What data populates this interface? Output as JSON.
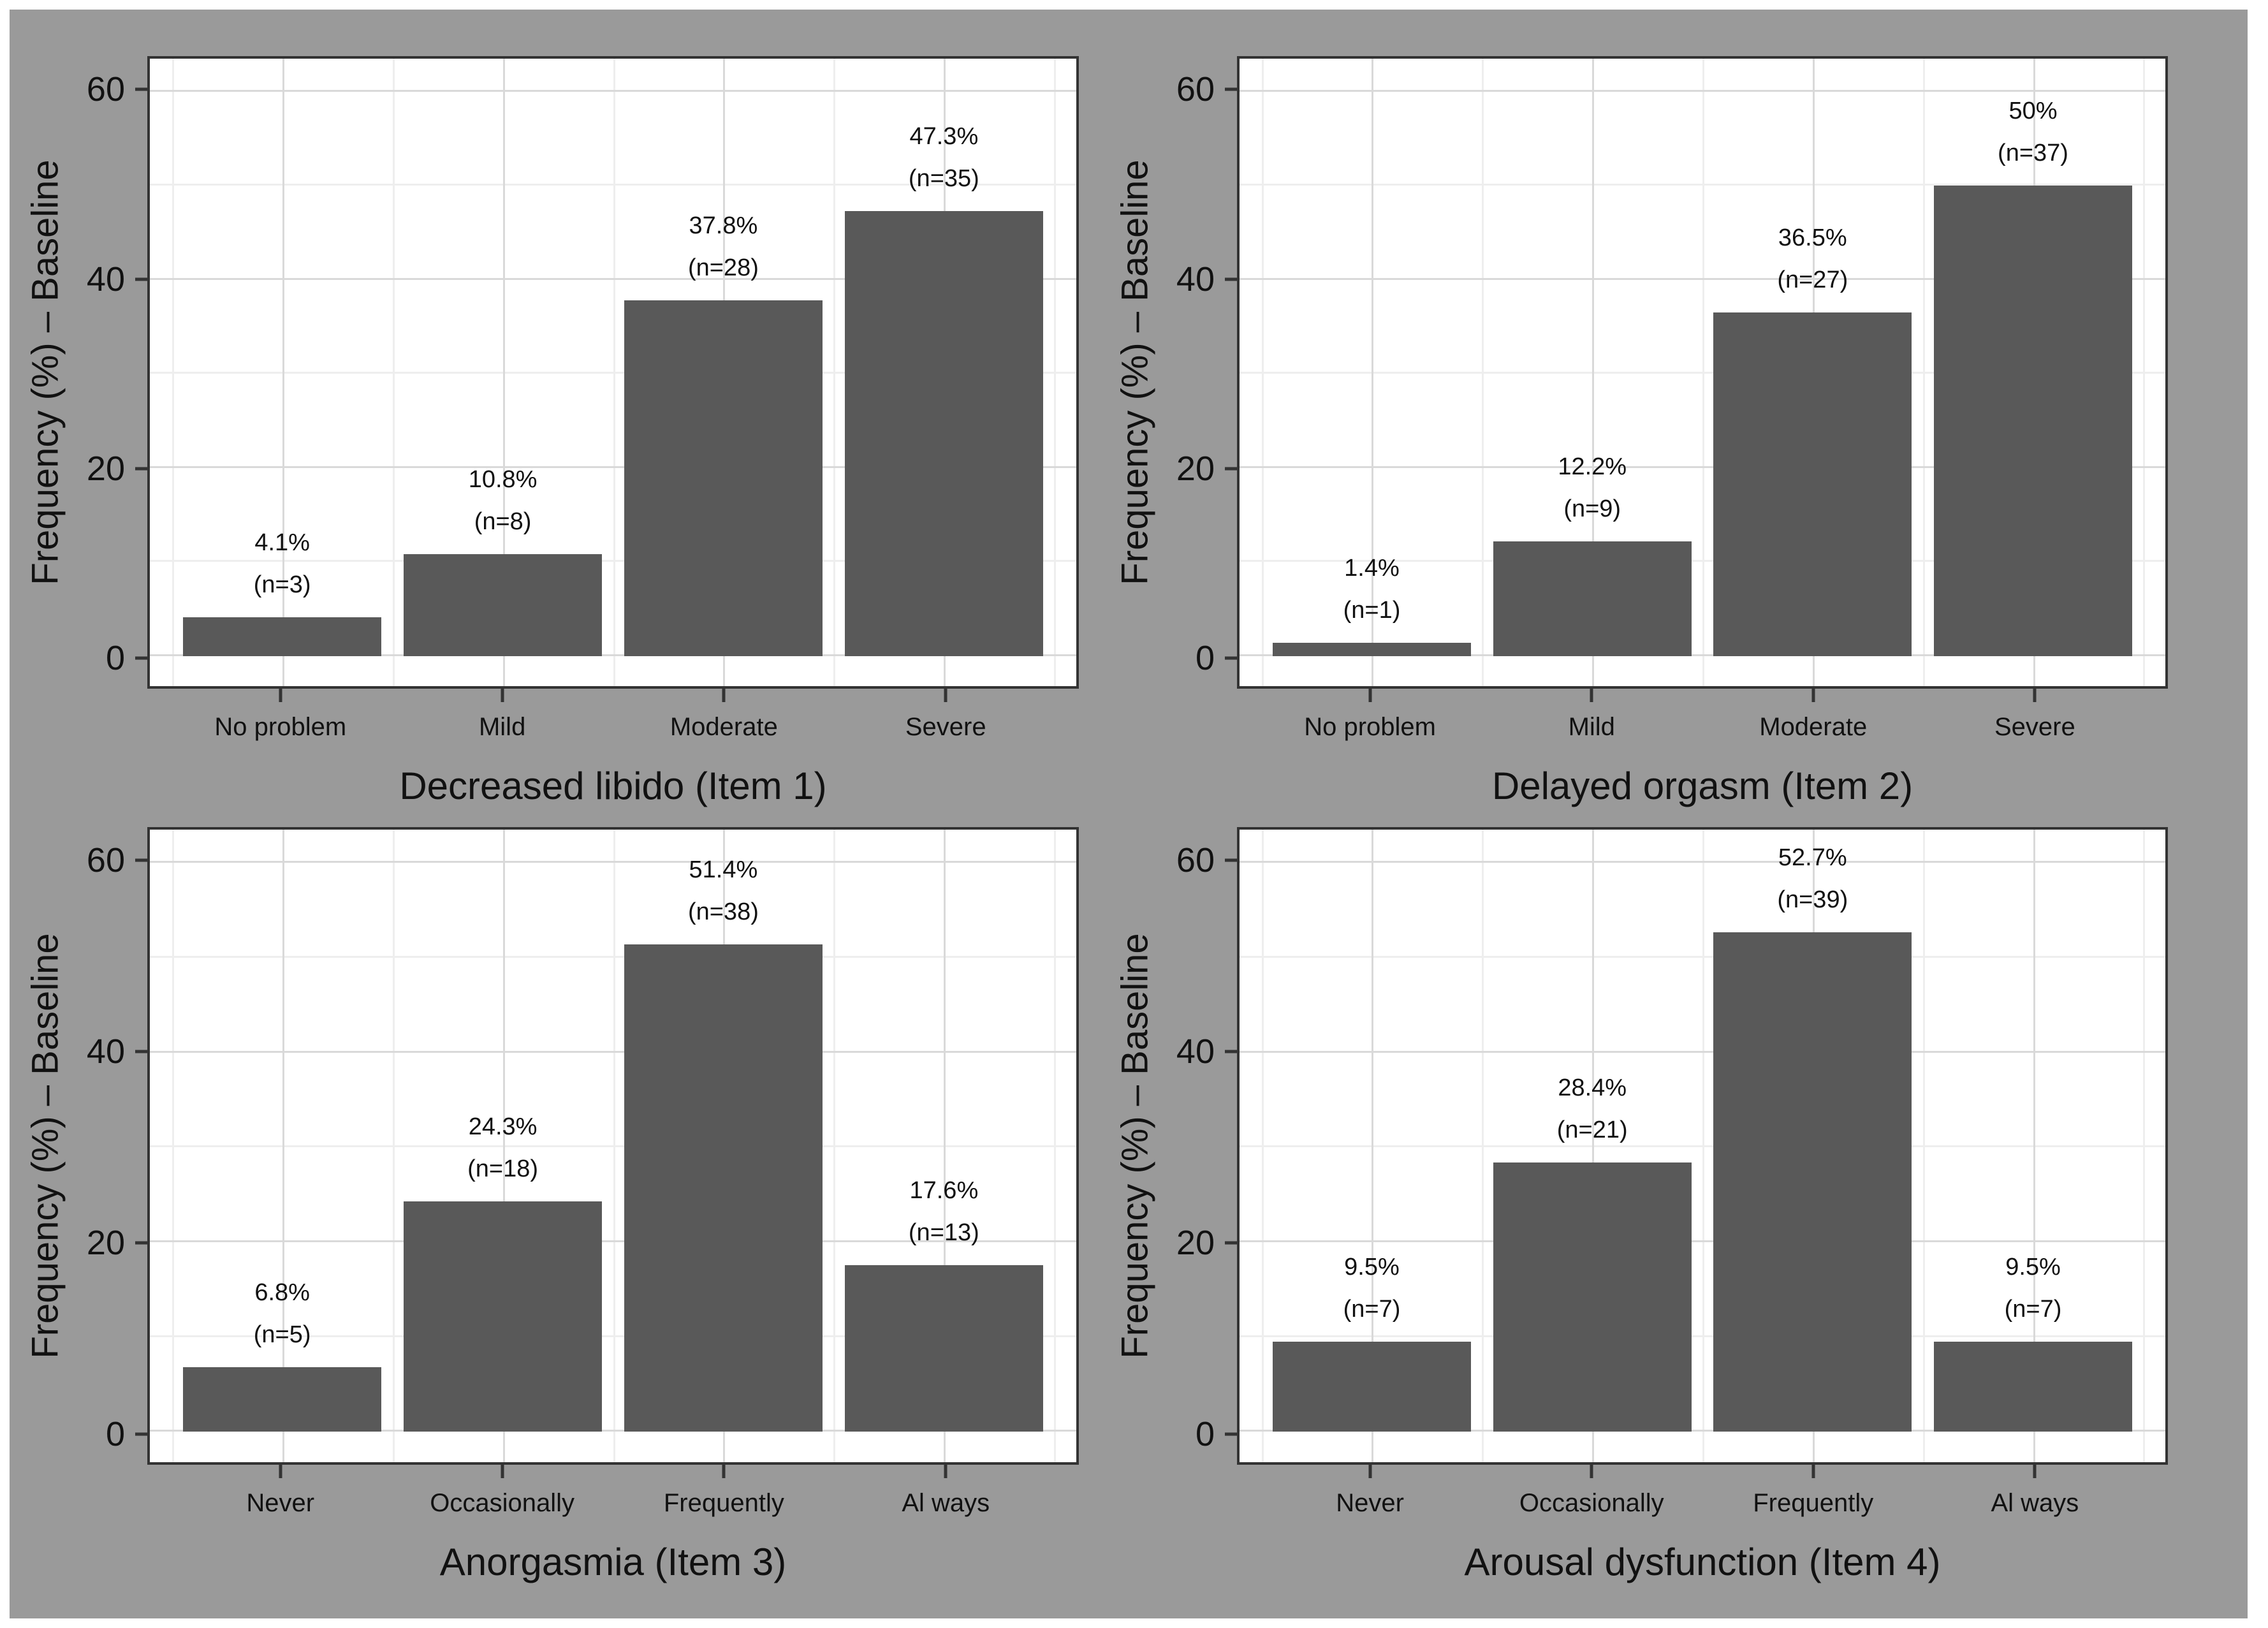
{
  "figure": {
    "ylabel": "Frequency (%) – Baseline",
    "y_tick_labels": [
      "0",
      "20",
      "40",
      "60"
    ],
    "colors": {
      "page_border": "#ffffff",
      "background": "#9a9a9a",
      "panel": "#ffffff",
      "panel_border": "#333333",
      "bar": "#595959",
      "grid_major": "#d9d9d9",
      "grid_minor": "#eeeeee",
      "text": "#111111"
    }
  },
  "chart_data": [
    {
      "type": "bar",
      "position": "top-left",
      "xlabel": "Decreased libido (Item 1)",
      "ylabel": "Frequency (%) – Baseline",
      "categories": [
        "No problem",
        "Mild",
        "Moderate",
        "Severe"
      ],
      "values": [
        4.1,
        10.8,
        37.8,
        47.3
      ],
      "counts": [
        3,
        8,
        28,
        35
      ],
      "pct_labels": [
        "4.1%",
        "10.8%",
        "37.8%",
        "47.3%"
      ],
      "n_labels": [
        "(n=3)",
        "(n=8)",
        "(n=28)",
        "(n=35)"
      ],
      "ylim": [
        0,
        60
      ],
      "yticks": [
        0,
        20,
        40,
        60
      ],
      "grid": true,
      "legend": false
    },
    {
      "type": "bar",
      "position": "top-right",
      "xlabel": "Delayed orgasm (Item 2)",
      "ylabel": "Frequency (%) – Baseline",
      "categories": [
        "No problem",
        "Mild",
        "Moderate",
        "Severe"
      ],
      "values": [
        1.4,
        12.2,
        36.5,
        50
      ],
      "counts": [
        1,
        9,
        27,
        37
      ],
      "pct_labels": [
        "1.4%",
        "12.2%",
        "36.5%",
        "50%"
      ],
      "n_labels": [
        "(n=1)",
        "(n=9)",
        "(n=27)",
        "(n=37)"
      ],
      "ylim": [
        0,
        60
      ],
      "yticks": [
        0,
        20,
        40,
        60
      ],
      "grid": true,
      "legend": false
    },
    {
      "type": "bar",
      "position": "bottom-left",
      "xlabel": "Anorgasmia (Item 3)",
      "ylabel": "Frequency (%) – Baseline",
      "categories": [
        "Never",
        "Occasionally",
        "Frequently",
        "Al ways"
      ],
      "values": [
        6.8,
        24.3,
        51.4,
        17.6
      ],
      "counts": [
        5,
        18,
        38,
        13
      ],
      "pct_labels": [
        "6.8%",
        "24.3%",
        "51.4%",
        "17.6%"
      ],
      "n_labels": [
        "(n=5)",
        "(n=18)",
        "(n=38)",
        "(n=13)"
      ],
      "ylim": [
        0,
        60
      ],
      "yticks": [
        0,
        20,
        40,
        60
      ],
      "grid": true,
      "legend": false
    },
    {
      "type": "bar",
      "position": "bottom-right",
      "xlabel": "Arousal dysfunction (Item 4)",
      "ylabel": "Frequency (%) – Baseline",
      "categories": [
        "Never",
        "Occasionally",
        "Frequently",
        "Al ways"
      ],
      "values": [
        9.5,
        28.4,
        52.7,
        9.5
      ],
      "counts": [
        7,
        21,
        39,
        7
      ],
      "pct_labels": [
        "9.5%",
        "28.4%",
        "52.7%",
        "9.5%"
      ],
      "n_labels": [
        "(n=7)",
        "(n=21)",
        "(n=39)",
        "(n=7)"
      ],
      "ylim": [
        0,
        60
      ],
      "yticks": [
        0,
        20,
        40,
        60
      ],
      "grid": true,
      "legend": false
    }
  ]
}
